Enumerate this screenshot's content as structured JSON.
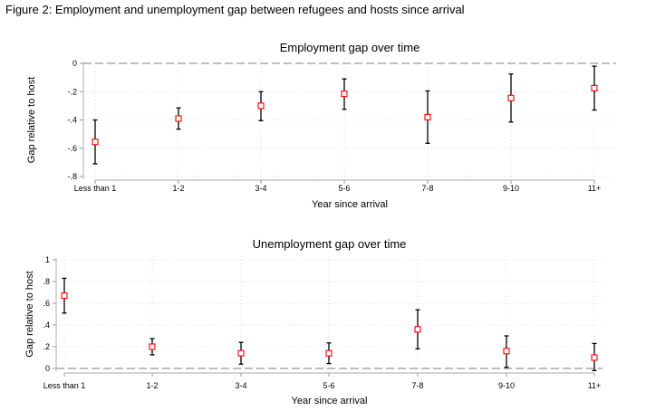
{
  "figure_title": "Figure 2: Employment and unemployment gap between refugees and hosts since arrival",
  "chart_data": [
    {
      "type": "scatter",
      "title": "Employment gap over time",
      "xlabel": "Year since arrival",
      "ylabel": "Gap relative to host",
      "categories": [
        "Less than 1",
        "1-2",
        "3-4",
        "5-6",
        "7-8",
        "9-10",
        "11+"
      ],
      "values": [
        -0.555,
        -0.39,
        -0.3,
        -0.215,
        -0.38,
        -0.245,
        -0.175
      ],
      "ci_low": [
        -0.71,
        -0.465,
        -0.405,
        -0.325,
        -0.565,
        -0.415,
        -0.33
      ],
      "ci_high": [
        -0.4,
        -0.315,
        -0.2,
        -0.11,
        -0.195,
        -0.075,
        -0.02
      ],
      "yticks": [
        0,
        -0.2,
        -0.4,
        -0.6,
        -0.8
      ],
      "ytick_labels": [
        "0",
        "-.2",
        "-.4",
        "-.6",
        "-.8"
      ],
      "ylim": [
        -0.8,
        0
      ],
      "reference_line": 0,
      "grid": true,
      "marker_color": "#ff0000",
      "ci_color": "#000000"
    },
    {
      "type": "scatter",
      "title": "Unemployment gap over time",
      "xlabel": "Year since arrival",
      "ylabel": "Gap relative to host",
      "categories": [
        "Less than 1",
        "1-2",
        "3-4",
        "5-6",
        "7-8",
        "9-10",
        "11+"
      ],
      "values": [
        0.67,
        0.2,
        0.14,
        0.14,
        0.36,
        0.16,
        0.1
      ],
      "ci_low": [
        0.51,
        0.125,
        0.04,
        0.045,
        0.18,
        0.01,
        -0.02
      ],
      "ci_high": [
        0.83,
        0.275,
        0.24,
        0.235,
        0.54,
        0.3,
        0.23
      ],
      "yticks": [
        1,
        0.8,
        0.6,
        0.4,
        0.2,
        0
      ],
      "ytick_labels": [
        "1",
        ".8",
        ".6",
        ".4",
        ".2",
        "0"
      ],
      "ylim": [
        0,
        1
      ],
      "reference_line": 0,
      "grid": true,
      "marker_color": "#ff0000",
      "ci_color": "#000000"
    }
  ]
}
